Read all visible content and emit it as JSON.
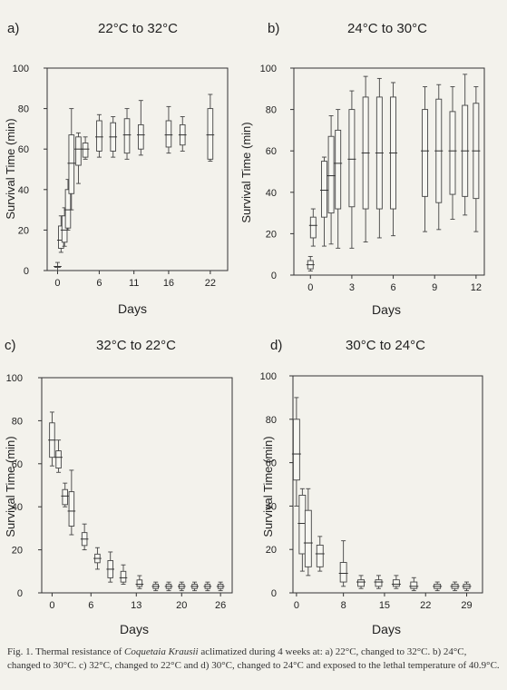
{
  "figure": {
    "caption_prefix": "Fig. 1. Thermal resistance of ",
    "caption_species": "Coquetaia Krausii",
    "caption_rest": " aclimatized during 4 weeks at: a) 22°C, changed to 32°C. b) 24°C, changed to 30°C. c)  32°C, changed to 22°C and d) 30°C, changed to 24°C and exposed to the lethal temperature of 40.9°C."
  },
  "chart_data": [
    {
      "type": "box",
      "panel_label": "a)",
      "title": "22°C to 32°C",
      "xlabel": "Days",
      "ylabel": "Survival Time (min)",
      "xlim": [
        -1.5,
        24.5
      ],
      "ylim": [
        0,
        100
      ],
      "xticks": [
        0,
        6,
        11,
        16,
        22
      ],
      "yticks": [
        0,
        20,
        40,
        60,
        80,
        100
      ],
      "boxes": [
        {
          "x": 0,
          "min": 0,
          "q1": 2,
          "median": 2,
          "q3": 2,
          "max": 4
        },
        {
          "x": 0.5,
          "min": 9,
          "q1": 11,
          "median": 15,
          "q3": 22,
          "max": 27
        },
        {
          "x": 1,
          "min": 12,
          "q1": 14,
          "median": 20,
          "q3": 27,
          "max": 31
        },
        {
          "x": 1.5,
          "min": 20,
          "q1": 21,
          "median": 30,
          "q3": 40,
          "max": 45
        },
        {
          "x": 2,
          "min": 30,
          "q1": 38,
          "median": 53,
          "q3": 67,
          "max": 80
        },
        {
          "x": 3,
          "min": 43,
          "q1": 52,
          "median": 60,
          "q3": 66,
          "max": 68
        },
        {
          "x": 4,
          "min": 55,
          "q1": 56,
          "median": 60,
          "q3": 63,
          "max": 66
        },
        {
          "x": 6,
          "min": 56,
          "q1": 59,
          "median": 66,
          "q3": 74,
          "max": 77
        },
        {
          "x": 8,
          "min": 56,
          "q1": 59,
          "median": 66,
          "q3": 73,
          "max": 76
        },
        {
          "x": 10,
          "min": 55,
          "q1": 58,
          "median": 67,
          "q3": 75,
          "max": 80
        },
        {
          "x": 12,
          "min": 57,
          "q1": 60,
          "median": 67,
          "q3": 72,
          "max": 84
        },
        {
          "x": 16,
          "min": 58,
          "q1": 61,
          "median": 67,
          "q3": 74,
          "max": 81
        },
        {
          "x": 18,
          "min": 59,
          "q1": 62,
          "median": 67,
          "q3": 72,
          "max": 76
        },
        {
          "x": 22,
          "min": 54,
          "q1": 55,
          "median": 67,
          "q3": 80,
          "max": 87
        }
      ]
    },
    {
      "type": "box",
      "panel_label": "b)",
      "title": "24°C to 30°C",
      "xlabel": "Days",
      "ylabel": "Survival Time (min)",
      "xlim": [
        -1.2,
        12.6
      ],
      "ylim": [
        0,
        100
      ],
      "xticks": [
        0,
        3,
        6,
        9,
        12
      ],
      "yticks": [
        0,
        20,
        40,
        60,
        80,
        100
      ],
      "boxes": [
        {
          "x": 0,
          "min": 2,
          "q1": 3,
          "median": 5,
          "q3": 7,
          "max": 9
        },
        {
          "x": 0.2,
          "min": 14,
          "q1": 18,
          "median": 24,
          "q3": 28,
          "max": 32
        },
        {
          "x": 1,
          "min": 14,
          "q1": 28,
          "median": 41,
          "q3": 55,
          "max": 57
        },
        {
          "x": 1.5,
          "min": 15,
          "q1": 30,
          "median": 48,
          "q3": 67,
          "max": 77
        },
        {
          "x": 2,
          "min": 13,
          "q1": 32,
          "median": 54,
          "q3": 70,
          "max": 80
        },
        {
          "x": 3,
          "min": 13,
          "q1": 33,
          "median": 56,
          "q3": 80,
          "max": 89
        },
        {
          "x": 4,
          "min": 16,
          "q1": 32,
          "median": 59,
          "q3": 86,
          "max": 96
        },
        {
          "x": 5,
          "min": 18,
          "q1": 32,
          "median": 59,
          "q3": 86,
          "max": 95
        },
        {
          "x": 6,
          "min": 19,
          "q1": 32,
          "median": 59,
          "q3": 86,
          "max": 93
        },
        {
          "x": 8.3,
          "min": 21,
          "q1": 38,
          "median": 60,
          "q3": 80,
          "max": 91
        },
        {
          "x": 9.3,
          "min": 22,
          "q1": 35,
          "median": 60,
          "q3": 85,
          "max": 92
        },
        {
          "x": 10.3,
          "min": 27,
          "q1": 39,
          "median": 60,
          "q3": 79,
          "max": 91
        },
        {
          "x": 11.2,
          "min": 29,
          "q1": 38,
          "median": 60,
          "q3": 82,
          "max": 97
        },
        {
          "x": 12,
          "min": 21,
          "q1": 37,
          "median": 60,
          "q3": 83,
          "max": 91
        }
      ]
    },
    {
      "type": "box",
      "panel_label": "c)",
      "title": "32°C to 22°C",
      "xlabel": "Days",
      "ylabel": "Survival Time (min)",
      "xlim": [
        -1.6,
        27.8
      ],
      "ylim": [
        0,
        100
      ],
      "xticks": [
        0,
        6,
        13,
        20,
        26
      ],
      "yticks": [
        0,
        20,
        40,
        60,
        80,
        100
      ],
      "boxes": [
        {
          "x": 0,
          "min": 59,
          "q1": 63,
          "median": 71,
          "q3": 79,
          "max": 84
        },
        {
          "x": 1,
          "min": 56,
          "q1": 58,
          "median": 63,
          "q3": 66,
          "max": 71
        },
        {
          "x": 2,
          "min": 40,
          "q1": 41,
          "median": 45,
          "q3": 48,
          "max": 51
        },
        {
          "x": 3,
          "min": 27,
          "q1": 31,
          "median": 38,
          "q3": 47,
          "max": 57
        },
        {
          "x": 5,
          "min": 20,
          "q1": 22,
          "median": 25,
          "q3": 28,
          "max": 32
        },
        {
          "x": 7,
          "min": 11,
          "q1": 14,
          "median": 16,
          "q3": 18,
          "max": 21
        },
        {
          "x": 9,
          "min": 5,
          "q1": 7,
          "median": 11,
          "q3": 15,
          "max": 19
        },
        {
          "x": 11,
          "min": 4,
          "q1": 5,
          "median": 7,
          "q3": 10,
          "max": 13
        },
        {
          "x": 13.5,
          "min": 2,
          "q1": 3,
          "median": 4,
          "q3": 6,
          "max": 8
        },
        {
          "x": 16,
          "min": 1,
          "q1": 2,
          "median": 3,
          "q3": 4,
          "max": 5
        },
        {
          "x": 18,
          "min": 1,
          "q1": 2,
          "median": 3,
          "q3": 4,
          "max": 5
        },
        {
          "x": 20,
          "min": 1,
          "q1": 2,
          "median": 3,
          "q3": 4,
          "max": 5
        },
        {
          "x": 22,
          "min": 1,
          "q1": 2,
          "median": 3,
          "q3": 4,
          "max": 5
        },
        {
          "x": 24,
          "min": 1,
          "q1": 2,
          "median": 3,
          "q3": 4,
          "max": 5
        },
        {
          "x": 26,
          "min": 1,
          "q1": 2,
          "median": 3,
          "q3": 4,
          "max": 5
        }
      ]
    },
    {
      "type": "box",
      "panel_label": "d)",
      "title": "30°C to 24°C",
      "xlabel": "Days",
      "ylabel": "Survival Time (min)",
      "xlim": [
        -0.6,
        31.7
      ],
      "ylim": [
        0,
        100
      ],
      "xticks": [
        0,
        8,
        15,
        22,
        29
      ],
      "yticks": [
        0,
        20,
        40,
        60,
        80,
        100
      ],
      "boxes": [
        {
          "x": 0,
          "min": 40,
          "q1": 52,
          "median": 64,
          "q3": 80,
          "max": 90
        },
        {
          "x": 1,
          "min": 10,
          "q1": 18,
          "median": 32,
          "q3": 45,
          "max": 48
        },
        {
          "x": 2,
          "min": 8,
          "q1": 12,
          "median": 23,
          "q3": 38,
          "max": 48
        },
        {
          "x": 4,
          "min": 10,
          "q1": 12,
          "median": 18,
          "q3": 22,
          "max": 26
        },
        {
          "x": 8,
          "min": 3,
          "q1": 5,
          "median": 9,
          "q3": 14,
          "max": 24
        },
        {
          "x": 11,
          "min": 2,
          "q1": 3,
          "median": 5,
          "q3": 6,
          "max": 8
        },
        {
          "x": 14,
          "min": 2,
          "q1": 3,
          "median": 5,
          "q3": 6,
          "max": 8
        },
        {
          "x": 17,
          "min": 2,
          "q1": 3,
          "median": 4,
          "q3": 6,
          "max": 8
        },
        {
          "x": 20,
          "min": 1,
          "q1": 2,
          "median": 3,
          "q3": 5,
          "max": 7
        },
        {
          "x": 24,
          "min": 1,
          "q1": 2,
          "median": 3,
          "q3": 4,
          "max": 5
        },
        {
          "x": 27,
          "min": 1,
          "q1": 2,
          "median": 3,
          "q3": 4,
          "max": 5
        },
        {
          "x": 29,
          "min": 1,
          "q1": 2,
          "median": 3,
          "q3": 4,
          "max": 5
        }
      ]
    }
  ]
}
